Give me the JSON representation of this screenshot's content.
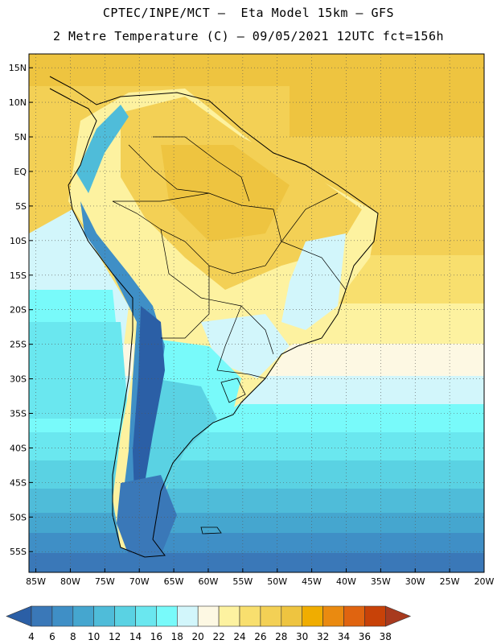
{
  "header": {
    "line1": "CPTEC/INPE/MCT –  Eta Model 15km – GFS",
    "line2": "2 Metre Temperature (C) – 09/05/2021 12UTC fct=156h"
  },
  "map": {
    "lat_labels": [
      "15N",
      "10N",
      "5N",
      "EQ",
      "5S",
      "10S",
      "15S",
      "20S",
      "25S",
      "30S",
      "35S",
      "40S",
      "45S",
      "50S",
      "55S"
    ],
    "lon_labels": [
      "85W",
      "80W",
      "75W",
      "70W",
      "65W",
      "60W",
      "55W",
      "50W",
      "45W",
      "40W",
      "35W",
      "30W",
      "25W",
      "20W"
    ],
    "lat_range": [
      -58,
      17
    ],
    "lon_range": [
      -86,
      -20
    ],
    "gridlines": "dotted"
  },
  "colorbar": {
    "values": [
      "4",
      "6",
      "8",
      "10",
      "12",
      "14",
      "16",
      "18",
      "20",
      "22",
      "24",
      "26",
      "28",
      "30",
      "32",
      "34",
      "36",
      "38"
    ],
    "colors": [
      "#2b5fa6",
      "#3a78b8",
      "#3f8fc6",
      "#45a6cf",
      "#4fbcd9",
      "#5ad2e3",
      "#6ae7ef",
      "#78fafa",
      "#d2f6fb",
      "#fdf8e3",
      "#fdf2a0",
      "#f8df6e",
      "#f3d055",
      "#eec440",
      "#f0ad00",
      "#ea8a10",
      "#e06410",
      "#c84208",
      "#a83a1e"
    ]
  }
}
